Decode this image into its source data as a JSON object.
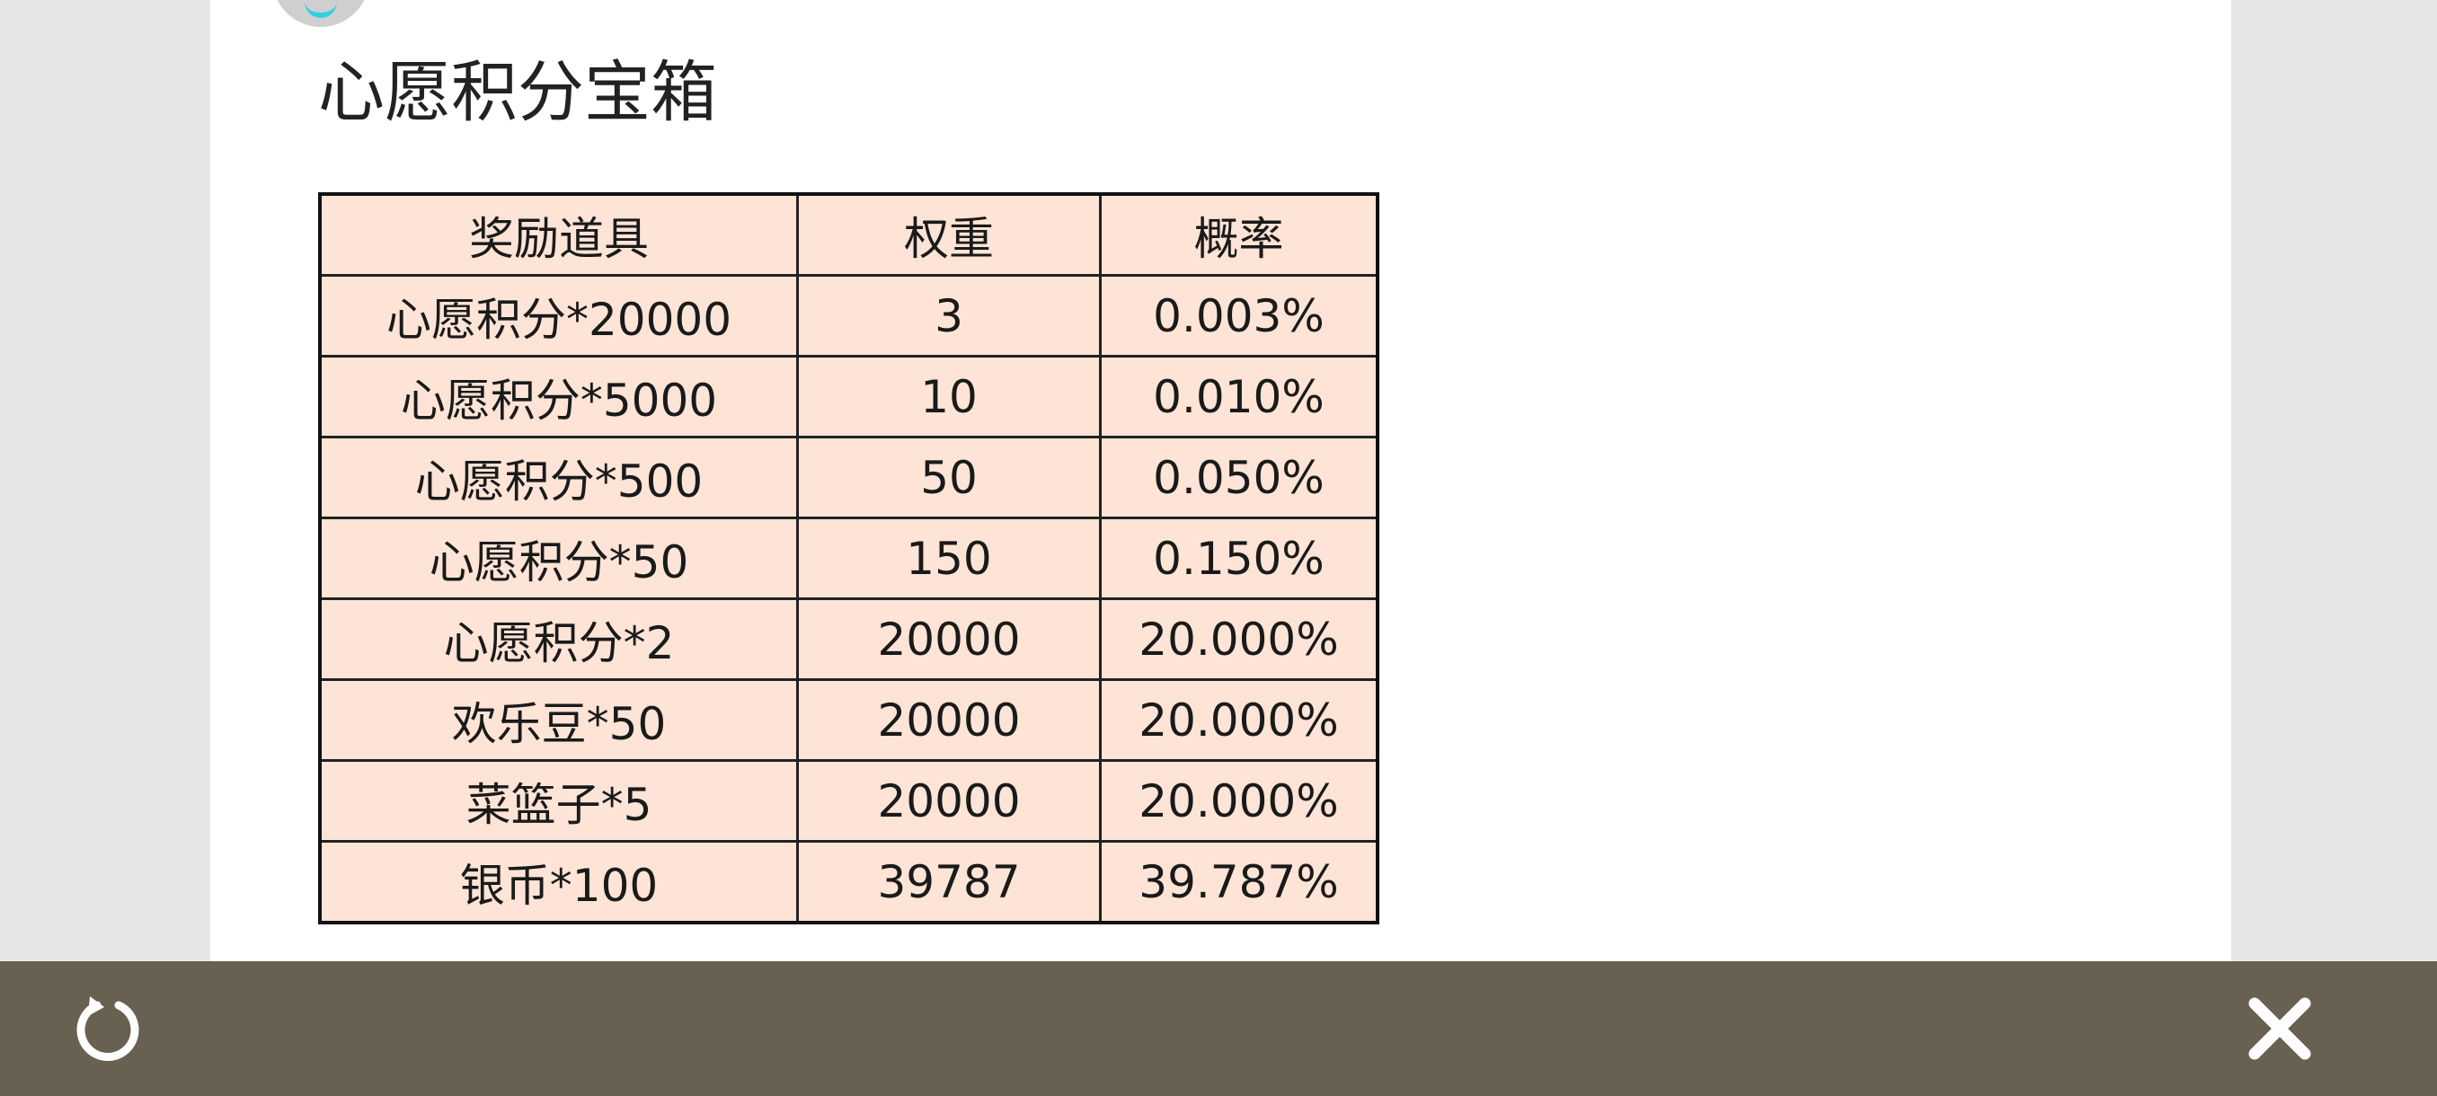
{
  "page": {
    "title": "心愿积分宝箱"
  },
  "table": {
    "headers": [
      "奖励道具",
      "权重",
      "概率"
    ],
    "rows": [
      [
        "心愿积分*20000",
        "3",
        "0.003%"
      ],
      [
        "心愿积分*5000",
        "10",
        "0.010%"
      ],
      [
        "心愿积分*500",
        "50",
        "0.050%"
      ],
      [
        "心愿积分*50",
        "150",
        "0.150%"
      ],
      [
        "心愿积分*2",
        "20000",
        "20.000%"
      ],
      [
        "欢乐豆*50",
        "20000",
        "20.000%"
      ],
      [
        "菜篮子*5",
        "20000",
        "20.000%"
      ],
      [
        "银币*100",
        "39787",
        "39.787%"
      ]
    ]
  },
  "toolbar": {
    "left_icon": "refresh-icon",
    "right_icon": "close-icon",
    "bg_color": "#686050"
  }
}
